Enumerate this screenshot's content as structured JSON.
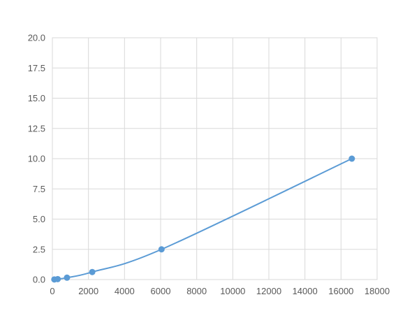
{
  "chart_data": {
    "type": "scatter",
    "title": "",
    "xlabel": "",
    "ylabel": "",
    "xlim": [
      0,
      18000
    ],
    "ylim": [
      0,
      20
    ],
    "x_ticks": [
      "0",
      "2000",
      "4000",
      "6000",
      "8000",
      "10000",
      "12000",
      "14000",
      "16000",
      "18000"
    ],
    "y_ticks": [
      "0.0",
      "2.5",
      "5.0",
      "7.5",
      "10.0",
      "12.5",
      "15.0",
      "17.5",
      "20.0"
    ],
    "grid": true,
    "legend": "none",
    "color": "#5b9bd5",
    "series": [
      {
        "x": [
          108,
          295,
          810,
          2210,
          6050,
          16600
        ],
        "y": [
          0.01,
          0.039,
          0.156,
          0.625,
          2.5,
          10.0
        ]
      }
    ],
    "trendline": "smooth curve"
  }
}
